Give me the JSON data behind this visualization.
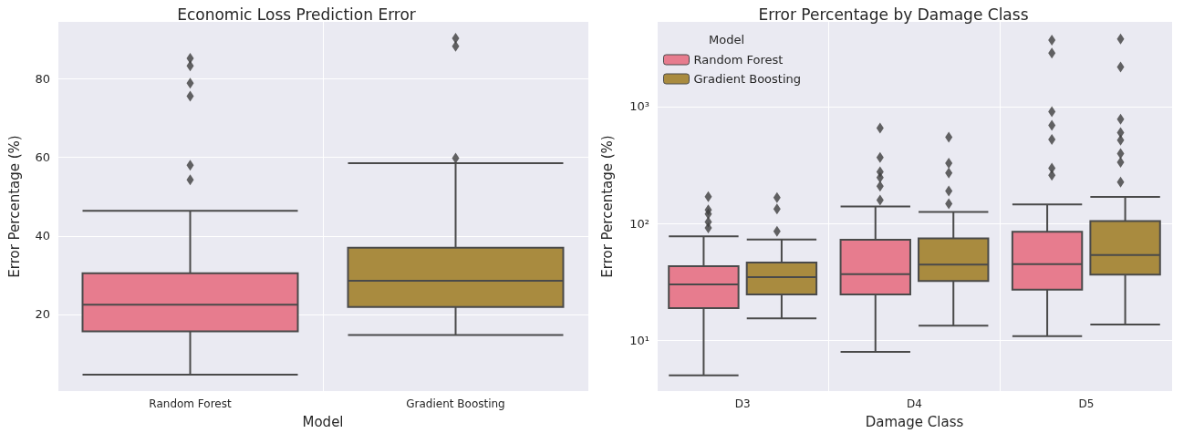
{
  "chart_data": [
    {
      "type": "box",
      "title": "Economic Loss Prediction Error",
      "xlabel": "Model",
      "ylabel": "Error Percentage (%)",
      "categories": [
        "Random Forest",
        "Gradient Boosting"
      ],
      "colors": [
        "#e77c8e",
        "#a98b3f"
      ],
      "boxes": [
        {
          "low": 4.7,
          "q1": 15.7,
          "median": 22.5,
          "q3": 30.5,
          "high": 46.4,
          "outliers": [
            85.2,
            83.3,
            78.9,
            75.6,
            58.0,
            54.3
          ]
        },
        {
          "low": 14.8,
          "q1": 21.9,
          "median": 28.6,
          "q3": 37.0,
          "high": 58.5,
          "outliers": [
            90.3,
            88.3,
            59.8
          ]
        }
      ],
      "ylim": [
        0.5,
        94.5
      ],
      "yticks": [
        20,
        40,
        60,
        80
      ],
      "grid": true,
      "marker": "diamond"
    },
    {
      "type": "box",
      "title": "Error Percentage by Damage Class",
      "xlabel": "Damage Class",
      "ylabel": "Error Percentage (%)",
      "categories": [
        "D3",
        "D4",
        "D5"
      ],
      "legend_title": "Model",
      "legend": "top left",
      "log": true,
      "grid": true,
      "marker": "diamond",
      "ylim": [
        3.7,
        5300
      ],
      "yticks": [
        {
          "value": 10,
          "label": "10¹"
        },
        {
          "value": 100,
          "label": "10²"
        },
        {
          "value": 1000,
          "label": "10³"
        }
      ],
      "series": [
        {
          "name": "Random Forest",
          "color": "#e77c8e",
          "boxes": [
            {
              "low": 5.05,
              "q1": 18.9,
              "median": 30.2,
              "q3": 43.3,
              "high": 77.8,
              "outliers": [
                170,
                131,
                121,
                103,
                92
              ]
            },
            {
              "low": 8.0,
              "q1": 24.8,
              "median": 37,
              "q3": 72.6,
              "high": 140,
              "outliers": [
                656,
                368,
                277,
                247,
                209,
                159
              ]
            },
            {
              "low": 10.9,
              "q1": 27.2,
              "median": 45,
              "q3": 85.1,
              "high": 146,
              "outliers": [
                3700,
                2870,
                907,
                692,
                524,
                298,
                259
              ]
            }
          ]
        },
        {
          "name": "Gradient Boosting",
          "color": "#a98b3f",
          "boxes": [
            {
              "low": 15.5,
              "q1": 24.8,
              "median": 34.8,
              "q3": 46.4,
              "high": 73,
              "outliers": [
                167,
                133,
                86
              ]
            },
            {
              "low": 13.4,
              "q1": 32.3,
              "median": 44.6,
              "q3": 74.8,
              "high": 126,
              "outliers": [
                548,
                329,
                271,
                190,
                148
              ]
            },
            {
              "low": 13.7,
              "q1": 36.6,
              "median": 53.8,
              "q3": 105,
              "high": 169,
              "outliers": [
                3790,
                2180,
                780,
                600,
                517,
                397,
                334,
                226
              ]
            }
          ]
        }
      ]
    }
  ]
}
